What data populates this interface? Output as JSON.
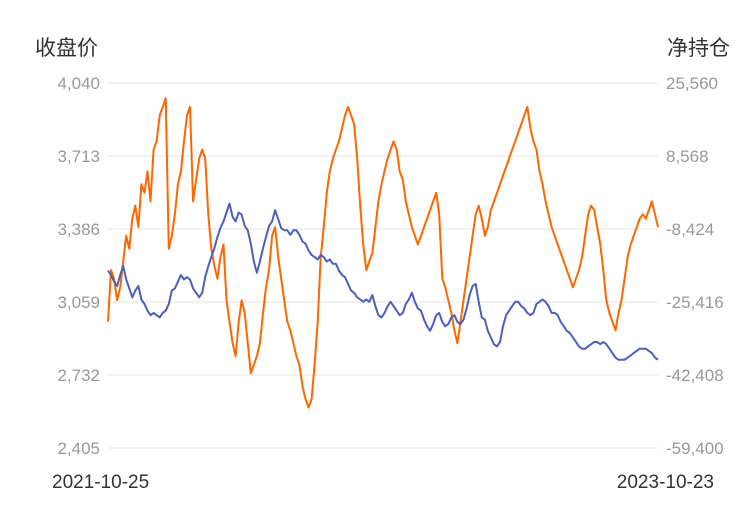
{
  "chart_data": {
    "type": "line",
    "left_axis_title": "收盘价",
    "right_axis_title": "净持仓",
    "left_ticks": [
      "4,040",
      "3,713",
      "3,386",
      "3,059",
      "2,732",
      "2,405"
    ],
    "right_ticks": [
      "25,560",
      "8,568",
      "-8,424",
      "-25,416",
      "-42,408",
      "-59,400"
    ],
    "ylim_left": [
      2405,
      4040
    ],
    "ylim_right": [
      -59400,
      25560
    ],
    "x_start": "2021-10-25",
    "x_end": "2023-10-23",
    "grid": true,
    "colors": {
      "price": "#4a5fc1",
      "position": "#ff6600",
      "grid": "#e6e6e6"
    },
    "series": [
      {
        "axis": "left",
        "values": [
          3200,
          3180,
          3150,
          3130,
          3180,
          3220,
          3160,
          3120,
          3080,
          3110,
          3130,
          3070,
          3050,
          3020,
          3000,
          3010,
          3000,
          2990,
          3010,
          3020,
          3050,
          3110,
          3120,
          3150,
          3180,
          3160,
          3170,
          3160,
          3120,
          3100,
          3080,
          3100,
          3170,
          3220,
          3260,
          3300,
          3350,
          3390,
          3420,
          3460,
          3500,
          3440,
          3420,
          3460,
          3450,
          3400,
          3380,
          3320,
          3240,
          3190,
          3240,
          3300,
          3350,
          3400,
          3420,
          3470,
          3430,
          3390,
          3380,
          3380,
          3360,
          3380,
          3380,
          3360,
          3330,
          3320,
          3290,
          3270,
          3260,
          3250,
          3270,
          3260,
          3240,
          3250,
          3230,
          3230,
          3200,
          3180,
          3170,
          3140,
          3110,
          3100,
          3080,
          3070,
          3060,
          3070,
          3060,
          3090,
          3040,
          3000,
          2990,
          3010,
          3040,
          3060,
          3040,
          3020,
          3000,
          3010,
          3050,
          3070,
          3100,
          3060,
          3030,
          3020,
          2980,
          2950,
          2930,
          2960,
          3000,
          3010,
          2970,
          2950,
          2960,
          2990,
          3000,
          2970,
          2960,
          2980,
          3030,
          3090,
          3130,
          3140,
          3060,
          2990,
          2980,
          2930,
          2900,
          2870,
          2860,
          2880,
          2950,
          3000,
          3020,
          3040,
          3060,
          3060,
          3040,
          3030,
          3010,
          3000,
          3010,
          3050,
          3060,
          3070,
          3060,
          3040,
          3010,
          3010,
          3000,
          2970,
          2950,
          2930,
          2920,
          2900,
          2880,
          2860,
          2850,
          2850,
          2860,
          2870,
          2880,
          2880,
          2870,
          2880,
          2870,
          2850,
          2830,
          2810,
          2800,
          2800,
          2800,
          2810,
          2820,
          2830,
          2840,
          2850,
          2850,
          2850,
          2840,
          2830,
          2810,
          2800
        ]
      },
      {
        "axis": "right",
        "values": [
          -30000,
          -18000,
          -20000,
          -25000,
          -22000,
          -16000,
          -10000,
          -13000,
          -6000,
          -3000,
          -8000,
          2000,
          0,
          5000,
          -2000,
          10000,
          12000,
          18000,
          20000,
          22000,
          -13000,
          -10000,
          -5000,
          2000,
          5000,
          12000,
          18000,
          20000,
          -2000,
          3000,
          8000,
          10000,
          8000,
          -5000,
          -13000,
          -17000,
          -20000,
          -15000,
          -12000,
          -25000,
          -30000,
          -35000,
          -38000,
          -30000,
          -25000,
          -28000,
          -35000,
          -42000,
          -40000,
          -38000,
          -35000,
          -28000,
          -22000,
          -18000,
          -10000,
          -8000,
          -15000,
          -20000,
          -25000,
          -30000,
          -32000,
          -35000,
          -38000,
          -40000,
          -45000,
          -48000,
          -50000,
          -48000,
          -40000,
          -30000,
          -15000,
          -8000,
          0,
          5000,
          8000,
          10000,
          12000,
          15000,
          18000,
          20000,
          18000,
          16000,
          8000,
          -3000,
          -12000,
          -18000,
          -16000,
          -14000,
          -8000,
          -2000,
          2000,
          5000,
          8000,
          10000,
          12000,
          10000,
          5000,
          3000,
          -2000,
          -5000,
          -8000,
          -10000,
          -12000,
          -10000,
          -8000,
          -6000,
          -4000,
          -2000,
          0,
          -5000,
          -20000,
          -22000,
          -25000,
          -28000,
          -32000,
          -35000,
          -30000,
          -25000,
          -20000,
          -15000,
          -10000,
          -5000,
          -3000,
          -6000,
          -10000,
          -8000,
          -4000,
          -2000,
          0,
          2000,
          4000,
          6000,
          8000,
          10000,
          12000,
          14000,
          16000,
          18000,
          20000,
          15000,
          12000,
          10000,
          5000,
          2000,
          -2000,
          -5000,
          -8000,
          -10000,
          -12000,
          -14000,
          -16000,
          -18000,
          -20000,
          -22000,
          -20000,
          -18000,
          -15000,
          -10000,
          -5000,
          -3000,
          -4000,
          -8000,
          -12000,
          -18000,
          -25000,
          -28000,
          -30000,
          -32000,
          -28000,
          -25000,
          -20000,
          -15000,
          -12000,
          -10000,
          -8000,
          -6000,
          -5000,
          -6000,
          -4000,
          -2000,
          -5000,
          -8000
        ]
      }
    ]
  }
}
